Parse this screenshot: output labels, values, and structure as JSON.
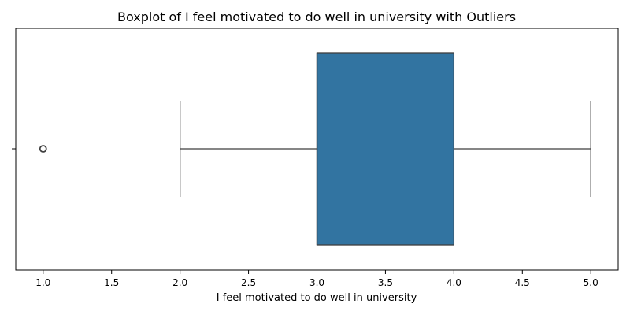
{
  "chart_data": {
    "type": "boxplot",
    "title": "Boxplot of I feel motivated to do well in university with Outliers",
    "xlabel": "I feel motivated to do well in university",
    "ylabel": "",
    "xlim": [
      0.8,
      5.2
    ],
    "xticks": [
      1.0,
      1.5,
      2.0,
      2.5,
      3.0,
      3.5,
      4.0,
      4.5,
      5.0
    ],
    "xtick_labels": [
      "1.0",
      "1.5",
      "2.0",
      "2.5",
      "3.0",
      "3.5",
      "4.0",
      "4.5",
      "5.0"
    ],
    "orientation": "horizontal",
    "box": {
      "q1": 3.0,
      "median": 3.0,
      "q3": 4.0,
      "whisker_low": 2.0,
      "whisker_high": 5.0,
      "outliers": [
        1.0
      ]
    },
    "colors": {
      "box_fill": "#3274a1",
      "line": "#3f3f3f"
    }
  }
}
